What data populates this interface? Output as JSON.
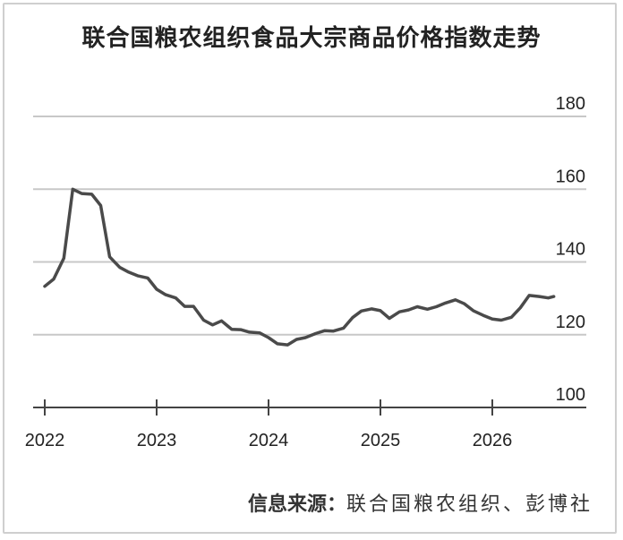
{
  "title": "联合国粮农组织食品大宗商品价格指数走势",
  "source": {
    "label": "信息来源：",
    "text": "联合国粮农组织、彭博社"
  },
  "colors": {
    "line": "#4a4a4a",
    "grid": "#c8c8c8",
    "axis": "#444444",
    "text": "#222222"
  },
  "chart_data": {
    "type": "line",
    "title": "联合国粮农组织食品大宗商品价格指数走势",
    "xlabel": "",
    "ylabel": "",
    "ylim": [
      100,
      180
    ],
    "xlim": [
      2022,
      2026.8
    ],
    "yticks": [
      180,
      160,
      140,
      120,
      100
    ],
    "xticks": [
      "2022",
      "2023",
      "2024",
      "2025",
      "2026"
    ],
    "grid": "horizontal",
    "series": [
      {
        "x": [
          2022.0,
          2022.08,
          2022.17,
          2022.25,
          2022.33,
          2022.42,
          2022.5,
          2022.58,
          2022.67,
          2022.75,
          2022.83,
          2022.92,
          2023.0,
          2023.08,
          2023.17,
          2023.25,
          2023.33,
          2023.42,
          2023.5,
          2023.58,
          2023.67,
          2023.75,
          2023.83,
          2023.92,
          2024.0,
          2024.08,
          2024.17,
          2024.25,
          2024.33,
          2024.42,
          2024.5,
          2024.58,
          2024.67,
          2024.75,
          2024.83,
          2024.92,
          2025.0,
          2025.08,
          2025.17,
          2025.25,
          2025.33,
          2025.42,
          2025.5,
          2025.58,
          2025.67,
          2025.75,
          2025.83,
          2025.92,
          2026.0,
          2026.08,
          2026.17,
          2026.25,
          2026.33,
          2026.42,
          2026.5,
          2026.55
        ],
        "y": [
          133.3,
          135.3,
          141,
          160,
          158.8,
          158.6,
          155.5,
          141.4,
          138.5,
          137.2,
          136.2,
          135.6,
          132.5,
          131,
          130.1,
          127.8,
          127.8,
          124,
          122.7,
          123.8,
          121.5,
          121.4,
          120.7,
          120.5,
          119.2,
          117.5,
          117.2,
          118.7,
          119.2,
          120.3,
          121.1,
          121,
          121.8,
          124.7,
          126.5,
          127.1,
          126.6,
          124.5,
          126.3,
          126.8,
          127.7,
          127,
          127.7,
          128.7,
          129.6,
          128.5,
          126.6,
          125.3,
          124.3,
          124,
          124.8,
          127.4,
          130.8,
          130.5,
          130.1,
          130.5
        ]
      }
    ]
  }
}
